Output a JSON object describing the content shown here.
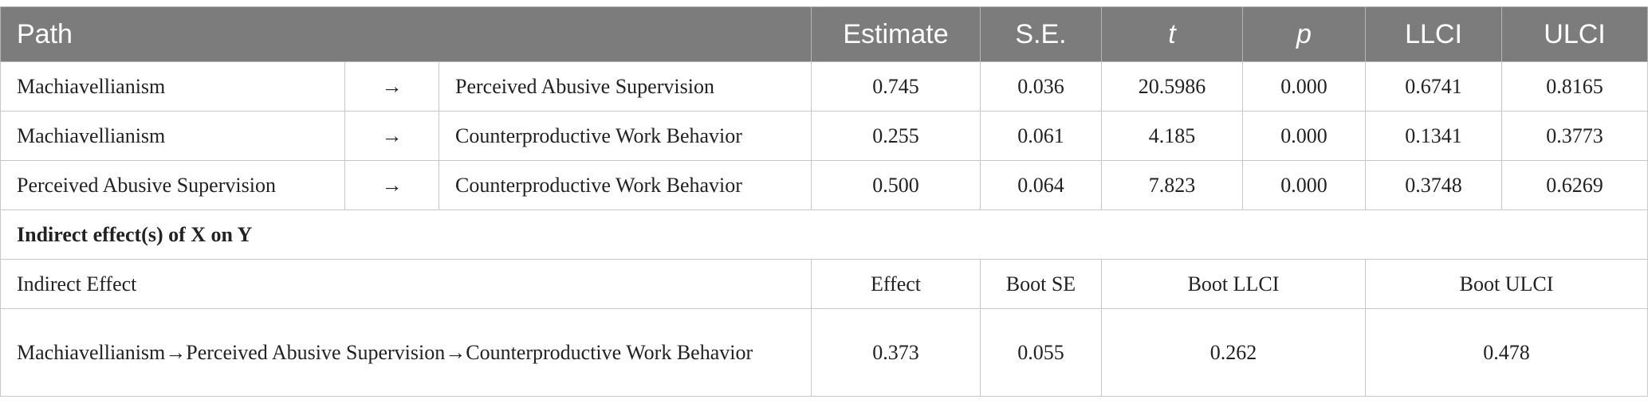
{
  "header": {
    "path": "Path",
    "estimate": "Estimate",
    "se": "S.E.",
    "t": "t",
    "p": "p",
    "llci": "LLCI",
    "ulci": "ULCI"
  },
  "rows": [
    {
      "from": "Machiavellianism",
      "arrow": "→",
      "to": "Perceived Abusive Supervision",
      "estimate": "0.745",
      "se": "0.036",
      "t": "20.5986",
      "p": "0.000",
      "llci": "0.6741",
      "ulci": "0.8165"
    },
    {
      "from": "Machiavellianism",
      "arrow": "→",
      "to": "Counterproductive Work Behavior",
      "estimate": "0.255",
      "se": "0.061",
      "t": "4.185",
      "p": "0.000",
      "llci": "0.1341",
      "ulci": "0.3773"
    },
    {
      "from": "Perceived Abusive Supervision",
      "arrow": "→",
      "to": "Counterproductive Work Behavior",
      "estimate": "0.500",
      "se": "0.064",
      "t": "7.823",
      "p": "0.000",
      "llci": "0.3748",
      "ulci": "0.6269"
    }
  ],
  "indirect": {
    "section_title": "Indirect effect(s) of X on Y",
    "headers": {
      "indirect_effect": "Indirect Effect",
      "effect": "Effect",
      "boot_se": "Boot SE",
      "boot_llci": "Boot LLCI",
      "boot_ulci": "Boot ULCI"
    },
    "row": {
      "path": "Machiavellianism→Perceived Abusive Supervision→Counterproductive Work Behavior",
      "effect": "0.373",
      "boot_se": "0.055",
      "boot_llci": "0.262",
      "boot_ulci": "0.478"
    }
  }
}
